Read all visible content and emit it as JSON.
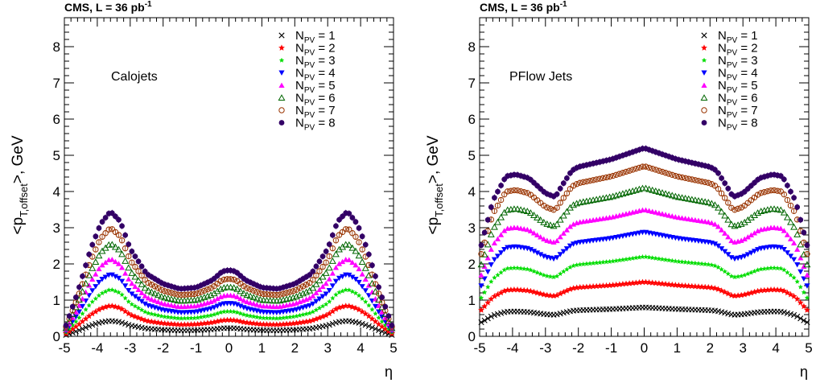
{
  "chart_data": [
    {
      "type": "scatter",
      "header": "CMS, L = 36 pb",
      "header_sup": "-1",
      "panel_label": "Calojets",
      "ylabel_main": "<p",
      "ylabel_sub": "T,offset",
      "ylabel_tail": ">, GeV",
      "xlabel": "η",
      "xlim": [
        -5,
        5
      ],
      "ylim": [
        0,
        8.8
      ],
      "xticks": [
        "-5",
        "-4",
        "-3",
        "-2",
        "-1",
        "0",
        "1",
        "2",
        "3",
        "4",
        "5"
      ],
      "yticks": [
        "0",
        "1",
        "2",
        "3",
        "4",
        "5",
        "6",
        "7",
        "8"
      ],
      "eta_profile": {
        "eta": [
          -5,
          -4.6,
          -4.2,
          -3.9,
          -3.6,
          -3.3,
          -3.0,
          -2.5,
          -2.0,
          -1.5,
          -1.0,
          -0.5,
          -0.2,
          0,
          0.2,
          0.5,
          1.0,
          1.5,
          2.0,
          2.5,
          3.0,
          3.3,
          3.6,
          3.9,
          4.2,
          4.6,
          5
        ],
        "shape": [
          0.05,
          0.35,
          0.7,
          0.9,
          1.0,
          0.92,
          0.7,
          0.5,
          0.42,
          0.38,
          0.39,
          0.45,
          0.52,
          0.53,
          0.52,
          0.45,
          0.39,
          0.38,
          0.42,
          0.5,
          0.7,
          0.92,
          1.0,
          0.9,
          0.7,
          0.35,
          0.05
        ]
      },
      "series": [
        {
          "name": "1",
          "peak": 0.43,
          "color": "#000000",
          "marker": "cross"
        },
        {
          "name": "2",
          "peak": 0.85,
          "color": "#ff0000",
          "marker": "star"
        },
        {
          "name": "3",
          "peak": 1.3,
          "color": "#00dd00",
          "marker": "smallstar"
        },
        {
          "name": "4",
          "peak": 1.72,
          "color": "#0000ff",
          "marker": "tridown"
        },
        {
          "name": "5",
          "peak": 2.15,
          "color": "#ff00ff",
          "marker": "triup"
        },
        {
          "name": "6",
          "peak": 2.57,
          "color": "#006600",
          "marker": "opentri"
        },
        {
          "name": "7",
          "peak": 3.0,
          "color": "#993300",
          "marker": "opencircle"
        },
        {
          "name": "8",
          "peak": 3.45,
          "color": "#330066",
          "marker": "dot"
        }
      ]
    },
    {
      "type": "scatter",
      "header": "CMS, L = 36 pb",
      "header_sup": "-1",
      "panel_label": "PFlow Jets",
      "ylabel_main": "<p",
      "ylabel_sub": "T,offset",
      "ylabel_tail": ">, GeV",
      "xlabel": "η",
      "xlim": [
        -5,
        5
      ],
      "ylim": [
        0,
        8.8
      ],
      "xticks": [
        "-5",
        "-4",
        "-3",
        "-2",
        "-1",
        "0",
        "1",
        "2",
        "3",
        "4",
        "5"
      ],
      "yticks": [
        "0",
        "1",
        "2",
        "3",
        "4",
        "5",
        "6",
        "7",
        "8"
      ],
      "eta_profile": {
        "eta": [
          -5,
          -4.6,
          -4.2,
          -3.9,
          -3.5,
          -3.0,
          -2.7,
          -2.5,
          -2.2,
          -2.0,
          -1.5,
          -1.0,
          -0.5,
          0,
          0.5,
          1.0,
          1.5,
          2.0,
          2.2,
          2.5,
          2.7,
          3.0,
          3.5,
          3.9,
          4.2,
          4.6,
          5
        ],
        "shape": [
          0.45,
          0.72,
          0.85,
          0.86,
          0.84,
          0.76,
          0.74,
          0.8,
          0.88,
          0.9,
          0.92,
          0.94,
          0.97,
          1.0,
          0.97,
          0.94,
          0.92,
          0.9,
          0.88,
          0.8,
          0.74,
          0.76,
          0.84,
          0.86,
          0.85,
          0.72,
          0.45
        ]
      },
      "series": [
        {
          "name": "1",
          "peak": 0.8,
          "color": "#000000",
          "marker": "cross"
        },
        {
          "name": "2",
          "peak": 1.5,
          "color": "#ff0000",
          "marker": "star"
        },
        {
          "name": "3",
          "peak": 2.2,
          "color": "#00dd00",
          "marker": "smallstar"
        },
        {
          "name": "4",
          "peak": 2.88,
          "color": "#0000ff",
          "marker": "tridown"
        },
        {
          "name": "5",
          "peak": 3.5,
          "color": "#ff00ff",
          "marker": "triup"
        },
        {
          "name": "6",
          "peak": 4.1,
          "color": "#006600",
          "marker": "opentri"
        },
        {
          "name": "7",
          "peak": 4.7,
          "color": "#993300",
          "marker": "opencircle"
        },
        {
          "name": "8",
          "peak": 5.2,
          "color": "#330066",
          "marker": "dot"
        }
      ]
    }
  ],
  "legend": {
    "prefix": "N",
    "sub": "PV",
    "sep": " = "
  }
}
